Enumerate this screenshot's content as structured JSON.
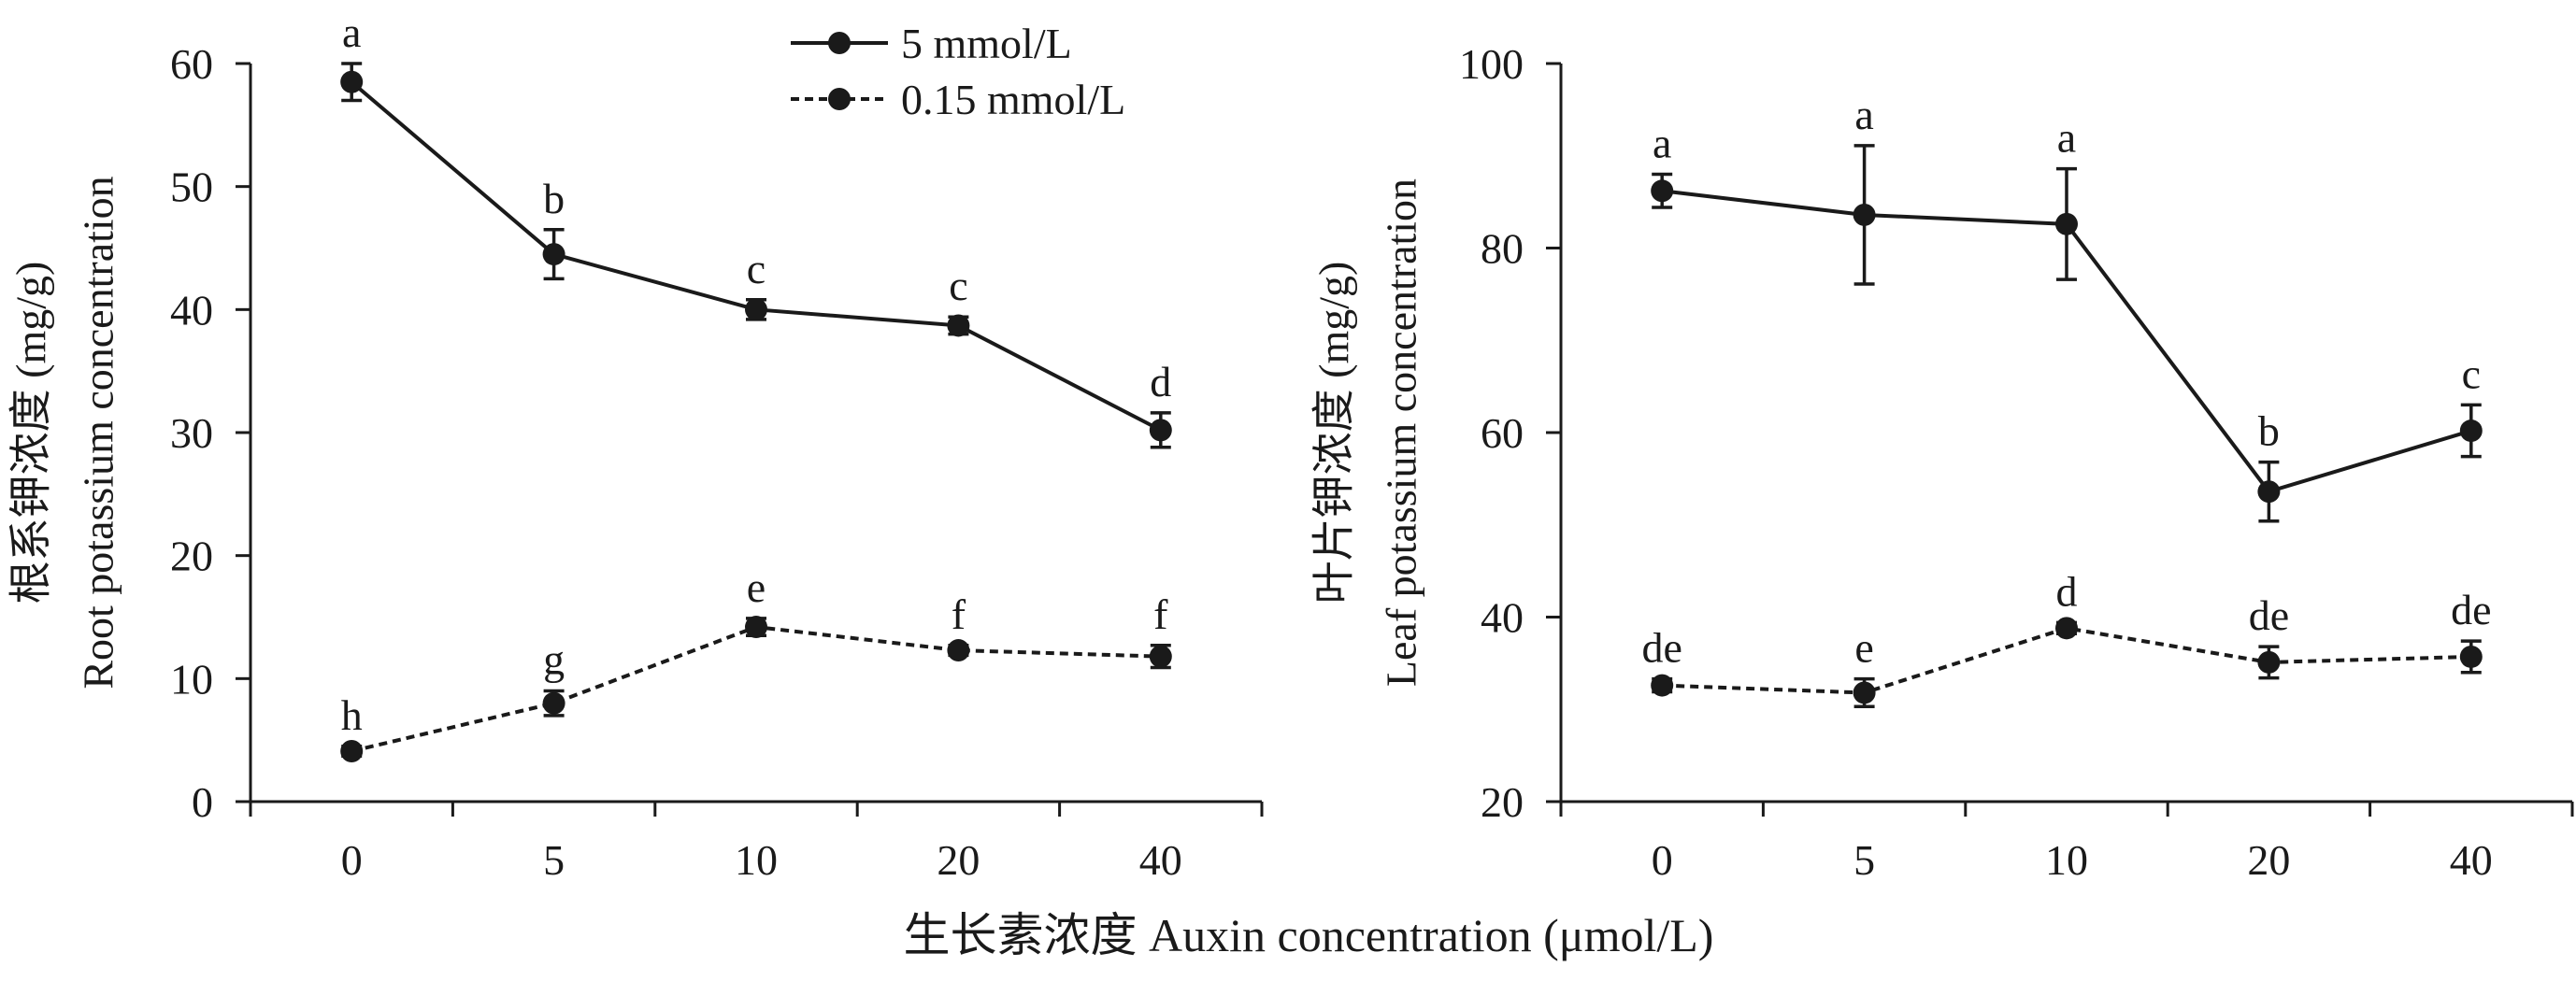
{
  "chart_data": [
    {
      "type": "line",
      "ylabel_cn": "根系钾浓度 (mg/g)",
      "ylabel_en": "Root potassium concentration",
      "categories": [
        "0",
        "5",
        "10",
        "20",
        "40"
      ],
      "ylim": [
        0,
        60
      ],
      "yticks": [
        0,
        10,
        20,
        30,
        40,
        50,
        60
      ],
      "series": [
        {
          "name": "5 mmol/L",
          "line_style": "solid",
          "values": [
            58.5,
            44.5,
            40.0,
            38.7,
            30.2
          ],
          "errors": [
            1.5,
            2.0,
            0.8,
            0.7,
            1.4
          ],
          "letters": [
            "a",
            "b",
            "c",
            "c",
            "d"
          ]
        },
        {
          "name": "0.15 mmol/L",
          "line_style": "dashed",
          "values": [
            4.1,
            8.0,
            14.2,
            12.3,
            11.8
          ],
          "errors": [
            0.4,
            1.0,
            0.7,
            0.4,
            0.9
          ],
          "letters": [
            "h",
            "g",
            "e",
            "f",
            "f"
          ]
        }
      ]
    },
    {
      "type": "line",
      "ylabel_cn": "叶片钾浓度 (mg/g)",
      "ylabel_en": "Leaf potassium concentration",
      "categories": [
        "0",
        "5",
        "10",
        "20",
        "40"
      ],
      "ylim": [
        20,
        100
      ],
      "yticks": [
        20,
        40,
        60,
        80,
        100
      ],
      "series": [
        {
          "name": "5 mmol/L",
          "line_style": "solid",
          "values": [
            86.2,
            83.6,
            82.6,
            53.6,
            60.2
          ],
          "errors": [
            1.8,
            7.5,
            6.0,
            3.2,
            2.8
          ],
          "letters": [
            "a",
            "a",
            "a",
            "b",
            "c"
          ]
        },
        {
          "name": "0.15 mmol/L",
          "line_style": "dashed",
          "values": [
            32.6,
            31.8,
            38.8,
            35.1,
            35.7
          ],
          "errors": [
            0.7,
            1.5,
            0.6,
            1.7,
            1.7
          ],
          "letters": [
            "de",
            "e",
            "d",
            "de",
            "de"
          ]
        }
      ]
    }
  ],
  "xlabel": "生长素浓度 Auxin concentration (μmol/L)",
  "legend": {
    "placement": "top-center",
    "entries": [
      {
        "name": "5 mmol/L",
        "line_style": "solid"
      },
      {
        "name": "0.15 mmol/L",
        "line_style": "dashed"
      }
    ]
  },
  "colors": {
    "line": "#1a1a1a",
    "background": "#ffffff"
  }
}
